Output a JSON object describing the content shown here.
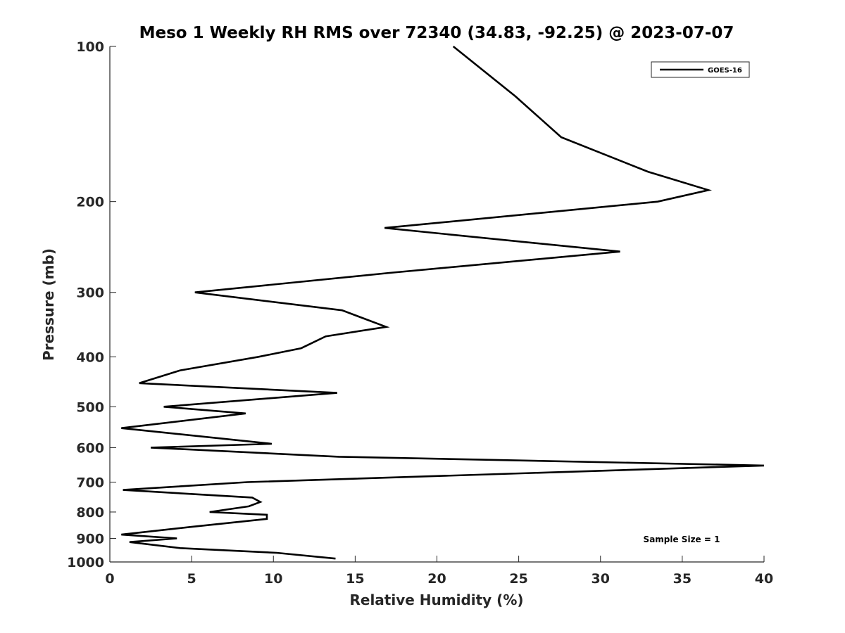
{
  "chart_data": {
    "type": "line",
    "title": "Meso 1 Weekly RH RMS over 72340 (34.83, -92.25) @ 2023-07-07",
    "xlabel": "Relative Humidity (%)",
    "ylabel": "Pressure (mb)",
    "xlim": [
      0,
      40
    ],
    "ylim": [
      1000,
      100
    ],
    "y_scale": "log",
    "y_reversed": true,
    "x_ticks": [
      0,
      5,
      10,
      15,
      20,
      25,
      30,
      35,
      40
    ],
    "y_ticks": [
      100,
      200,
      300,
      400,
      500,
      600,
      700,
      800,
      900,
      1000
    ],
    "grid": false,
    "legend_position": "top-right",
    "annotation": "Sample Size = 1",
    "series": [
      {
        "name": "GOES-16",
        "color": "#000000",
        "points": [
          {
            "x": 21.0,
            "p": 100
          },
          {
            "x": 24.8,
            "p": 125
          },
          {
            "x": 27.6,
            "p": 150
          },
          {
            "x": 32.9,
            "p": 175
          },
          {
            "x": 36.6,
            "p": 190
          },
          {
            "x": 33.5,
            "p": 200
          },
          {
            "x": 16.8,
            "p": 225
          },
          {
            "x": 31.2,
            "p": 250
          },
          {
            "x": 17.1,
            "p": 275
          },
          {
            "x": 5.2,
            "p": 300
          },
          {
            "x": 14.2,
            "p": 325
          },
          {
            "x": 16.9,
            "p": 350
          },
          {
            "x": 13.2,
            "p": 365
          },
          {
            "x": 11.7,
            "p": 385
          },
          {
            "x": 9.1,
            "p": 400
          },
          {
            "x": 4.3,
            "p": 425
          },
          {
            "x": 1.8,
            "p": 450
          },
          {
            "x": 13.9,
            "p": 470
          },
          {
            "x": 3.3,
            "p": 500
          },
          {
            "x": 8.3,
            "p": 515
          },
          {
            "x": 0.7,
            "p": 550
          },
          {
            "x": 9.9,
            "p": 590
          },
          {
            "x": 2.5,
            "p": 600
          },
          {
            "x": 14.0,
            "p": 625
          },
          {
            "x": 40.0,
            "p": 650
          },
          {
            "x": 8.4,
            "p": 700
          },
          {
            "x": 0.8,
            "p": 725
          },
          {
            "x": 8.7,
            "p": 750
          },
          {
            "x": 9.2,
            "p": 765
          },
          {
            "x": 8.5,
            "p": 780
          },
          {
            "x": 6.1,
            "p": 800
          },
          {
            "x": 9.6,
            "p": 810
          },
          {
            "x": 9.6,
            "p": 825
          },
          {
            "x": 5.0,
            "p": 855
          },
          {
            "x": 0.7,
            "p": 885
          },
          {
            "x": 4.1,
            "p": 900
          },
          {
            "x": 1.2,
            "p": 915
          },
          {
            "x": 4.3,
            "p": 940
          },
          {
            "x": 10.2,
            "p": 960
          },
          {
            "x": 13.8,
            "p": 985
          }
        ]
      }
    ]
  }
}
